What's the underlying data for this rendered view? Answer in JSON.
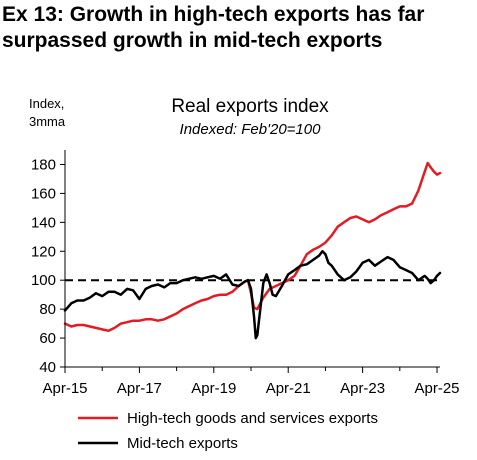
{
  "exhibit": {
    "title_line1": "Ex 13: Growth in high-tech exports has far",
    "title_line2": "surpassed growth in mid-tech exports"
  },
  "chart_data": {
    "type": "line",
    "title": "Real exports index",
    "subtitle": "Indexed: Feb'20=100",
    "ylabel_line1": "Index,",
    "ylabel_line2": "3mma",
    "ylim": [
      40,
      190
    ],
    "yticks": [
      40,
      60,
      80,
      100,
      120,
      140,
      160,
      180
    ],
    "xlim": [
      2015.25,
      2025.33
    ],
    "xticks": [
      {
        "label": "Apr-15",
        "x": 2015.25
      },
      {
        "label": "Apr-17",
        "x": 2017.25
      },
      {
        "label": "Apr-19",
        "x": 2019.25
      },
      {
        "label": "Apr-21",
        "x": 2021.25
      },
      {
        "label": "Apr-23",
        "x": 2023.25
      },
      {
        "label": "Apr-25",
        "x": 2025.25
      }
    ],
    "reference_line": 100,
    "grid": false,
    "legend_position": "bottom",
    "series": [
      {
        "name": "High-tech goods and services exports",
        "color": "#e31b23",
        "points": [
          [
            2015.25,
            70
          ],
          [
            2015.42,
            68
          ],
          [
            2015.58,
            69
          ],
          [
            2015.75,
            69
          ],
          [
            2015.92,
            68
          ],
          [
            2016.08,
            67
          ],
          [
            2016.25,
            66
          ],
          [
            2016.42,
            65
          ],
          [
            2016.58,
            67
          ],
          [
            2016.75,
            70
          ],
          [
            2016.92,
            71
          ],
          [
            2017.08,
            72
          ],
          [
            2017.25,
            72
          ],
          [
            2017.42,
            73
          ],
          [
            2017.58,
            73
          ],
          [
            2017.75,
            72
          ],
          [
            2017.92,
            73
          ],
          [
            2018.08,
            75
          ],
          [
            2018.25,
            77
          ],
          [
            2018.42,
            80
          ],
          [
            2018.58,
            82
          ],
          [
            2018.75,
            84
          ],
          [
            2018.92,
            86
          ],
          [
            2019.08,
            87
          ],
          [
            2019.25,
            89
          ],
          [
            2019.42,
            90
          ],
          [
            2019.58,
            90
          ],
          [
            2019.75,
            92
          ],
          [
            2019.92,
            96
          ],
          [
            2020.08,
            99
          ],
          [
            2020.17,
            100
          ],
          [
            2020.25,
            91
          ],
          [
            2020.33,
            81
          ],
          [
            2020.42,
            80
          ],
          [
            2020.58,
            88
          ],
          [
            2020.75,
            94
          ],
          [
            2020.92,
            96
          ],
          [
            2021.08,
            98
          ],
          [
            2021.25,
            100
          ],
          [
            2021.42,
            103
          ],
          [
            2021.58,
            110
          ],
          [
            2021.75,
            118
          ],
          [
            2021.92,
            121
          ],
          [
            2022.08,
            123
          ],
          [
            2022.25,
            126
          ],
          [
            2022.42,
            131
          ],
          [
            2022.58,
            137
          ],
          [
            2022.75,
            140
          ],
          [
            2022.92,
            143
          ],
          [
            2023.08,
            144
          ],
          [
            2023.25,
            142
          ],
          [
            2023.42,
            140
          ],
          [
            2023.58,
            142
          ],
          [
            2023.75,
            145
          ],
          [
            2023.92,
            147
          ],
          [
            2024.08,
            149
          ],
          [
            2024.25,
            151
          ],
          [
            2024.42,
            151
          ],
          [
            2024.58,
            153
          ],
          [
            2024.75,
            162
          ],
          [
            2024.92,
            175
          ],
          [
            2025.0,
            181
          ],
          [
            2025.08,
            178
          ],
          [
            2025.17,
            175
          ],
          [
            2025.25,
            173
          ],
          [
            2025.33,
            174
          ]
        ]
      },
      {
        "name": "Mid-tech exports",
        "color": "#000000",
        "points": [
          [
            2015.25,
            79
          ],
          [
            2015.42,
            84
          ],
          [
            2015.58,
            86
          ],
          [
            2015.75,
            86
          ],
          [
            2015.92,
            88
          ],
          [
            2016.08,
            91
          ],
          [
            2016.25,
            89
          ],
          [
            2016.42,
            92
          ],
          [
            2016.58,
            92
          ],
          [
            2016.75,
            90
          ],
          [
            2016.92,
            94
          ],
          [
            2017.08,
            93
          ],
          [
            2017.25,
            87
          ],
          [
            2017.42,
            94
          ],
          [
            2017.58,
            96
          ],
          [
            2017.75,
            97
          ],
          [
            2017.92,
            95
          ],
          [
            2018.08,
            98
          ],
          [
            2018.25,
            98
          ],
          [
            2018.42,
            100
          ],
          [
            2018.58,
            101
          ],
          [
            2018.75,
            102
          ],
          [
            2018.92,
            101
          ],
          [
            2019.08,
            102
          ],
          [
            2019.25,
            103
          ],
          [
            2019.42,
            101
          ],
          [
            2019.58,
            104
          ],
          [
            2019.75,
            97
          ],
          [
            2019.92,
            96
          ],
          [
            2020.08,
            99
          ],
          [
            2020.17,
            100
          ],
          [
            2020.25,
            94
          ],
          [
            2020.33,
            75
          ],
          [
            2020.38,
            60
          ],
          [
            2020.42,
            62
          ],
          [
            2020.5,
            80
          ],
          [
            2020.58,
            98
          ],
          [
            2020.67,
            104
          ],
          [
            2020.75,
            98
          ],
          [
            2020.83,
            90
          ],
          [
            2020.92,
            89
          ],
          [
            2021.08,
            96
          ],
          [
            2021.25,
            104
          ],
          [
            2021.42,
            107
          ],
          [
            2021.58,
            110
          ],
          [
            2021.75,
            111
          ],
          [
            2021.92,
            114
          ],
          [
            2022.08,
            117
          ],
          [
            2022.17,
            120
          ],
          [
            2022.25,
            118
          ],
          [
            2022.33,
            112
          ],
          [
            2022.42,
            110
          ],
          [
            2022.58,
            104
          ],
          [
            2022.75,
            100
          ],
          [
            2022.92,
            102
          ],
          [
            2023.08,
            106
          ],
          [
            2023.25,
            112
          ],
          [
            2023.42,
            114
          ],
          [
            2023.58,
            110
          ],
          [
            2023.75,
            113
          ],
          [
            2023.92,
            116
          ],
          [
            2024.08,
            114
          ],
          [
            2024.25,
            109
          ],
          [
            2024.42,
            107
          ],
          [
            2024.58,
            105
          ],
          [
            2024.75,
            100
          ],
          [
            2024.92,
            103
          ],
          [
            2025.0,
            101
          ],
          [
            2025.08,
            98
          ],
          [
            2025.17,
            100
          ],
          [
            2025.25,
            103
          ],
          [
            2025.33,
            105
          ]
        ]
      }
    ]
  }
}
